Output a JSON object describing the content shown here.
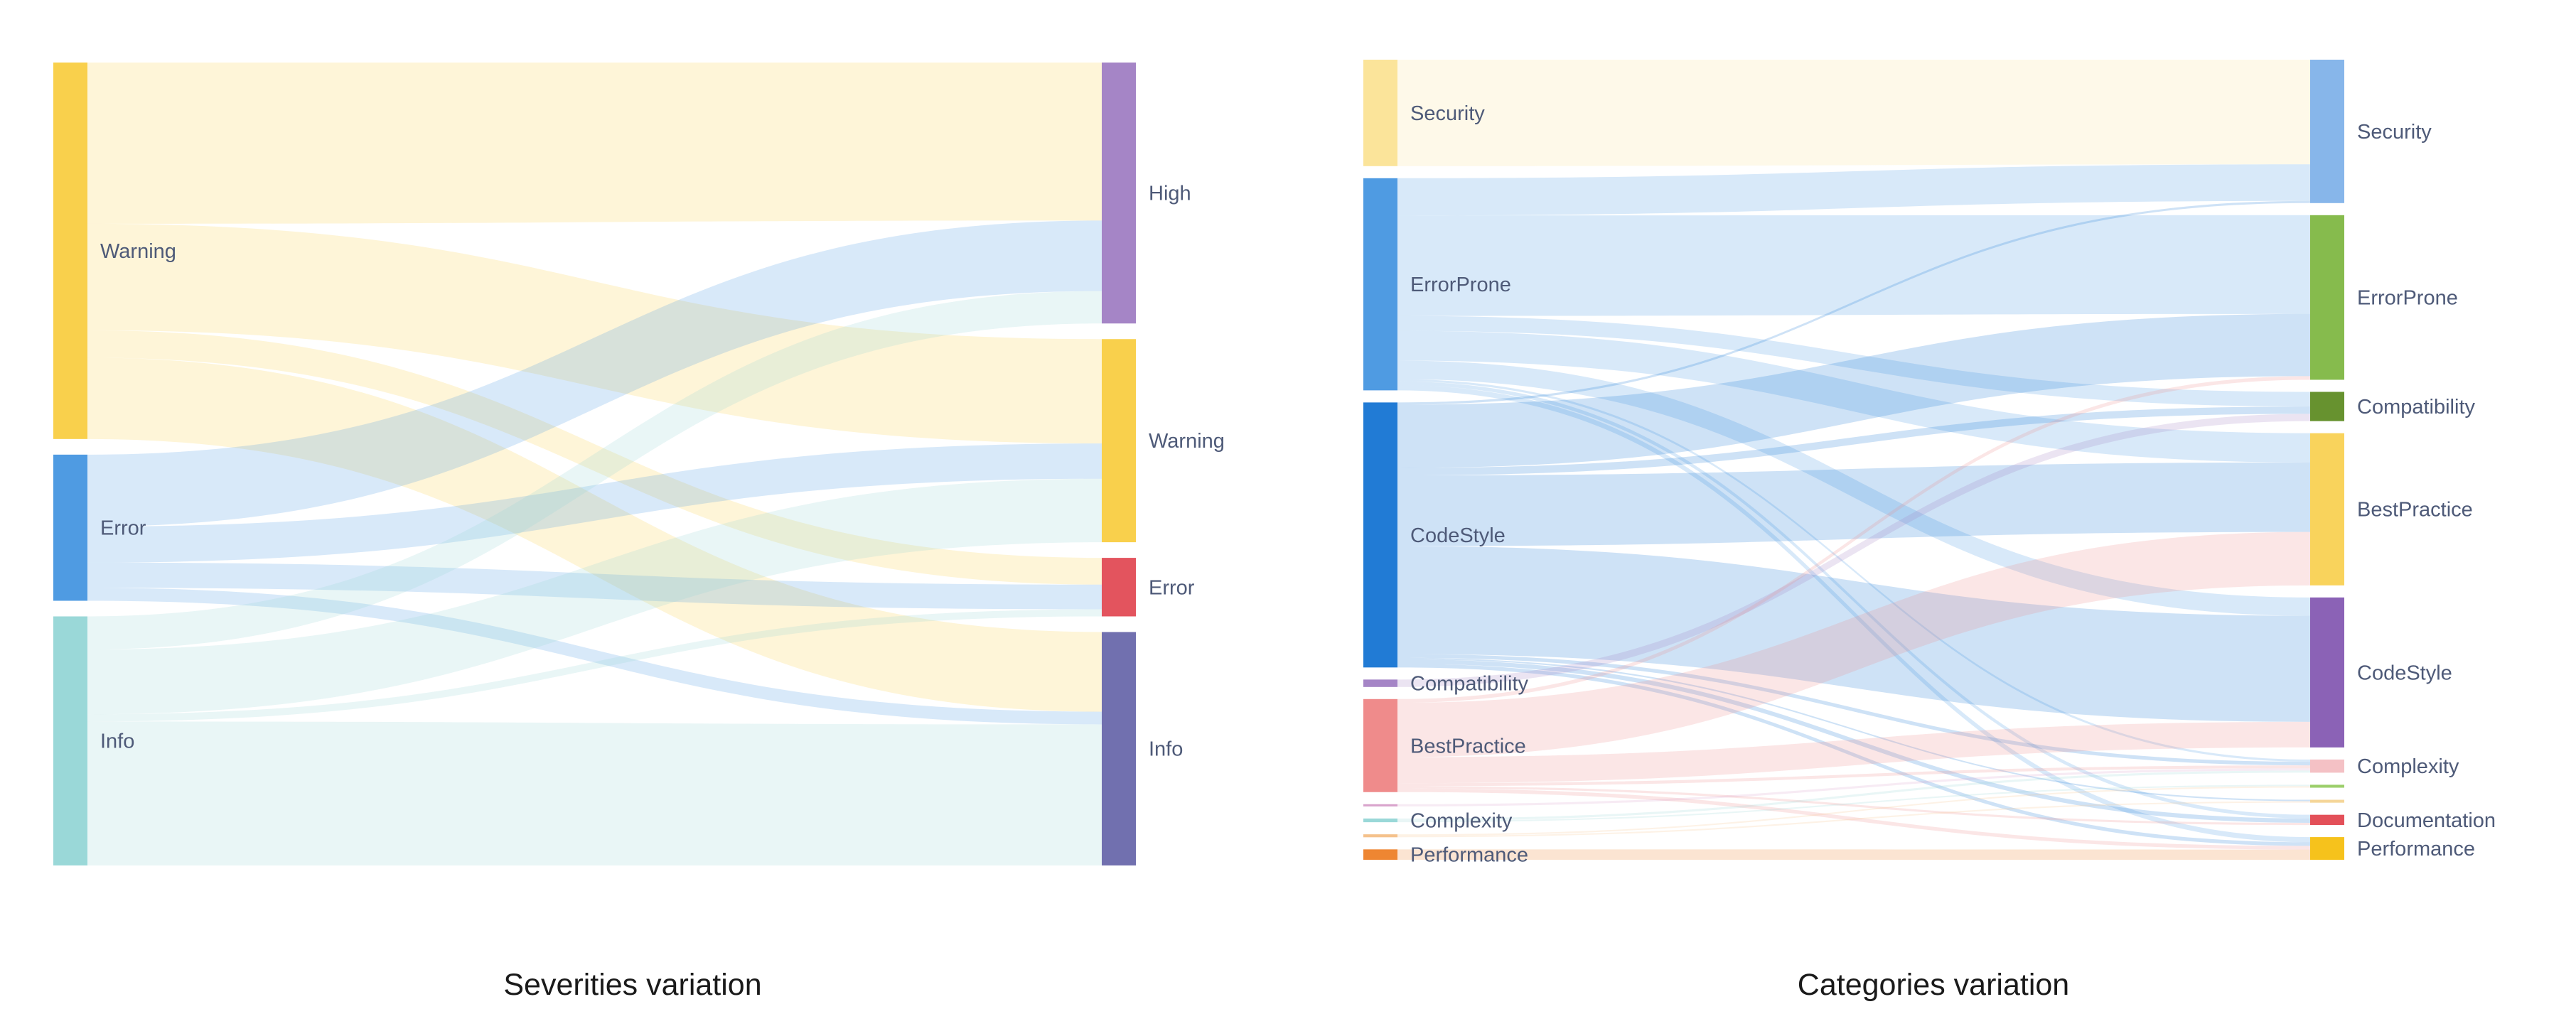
{
  "chart_data": [
    {
      "type": "sankey",
      "caption": "Severities variation",
      "sources": [
        {
          "id": "s_warning",
          "label": "Warning",
          "color": "#f9d04c"
        },
        {
          "id": "s_error",
          "label": "Error",
          "color": "#4f9be2"
        },
        {
          "id": "s_info",
          "label": "Info",
          "color": "#9ad8d8"
        }
      ],
      "targets": [
        {
          "id": "t_high",
          "label": "High",
          "color": "#a585c6"
        },
        {
          "id": "t_warning",
          "label": "Warning",
          "color": "#f9d04c"
        },
        {
          "id": "t_error",
          "label": "Error",
          "color": "#e3545e"
        },
        {
          "id": "t_info",
          "label": "Info",
          "color": "#7170af"
        }
      ],
      "links": [
        {
          "source": "s_warning",
          "target": "t_high",
          "value": 224
        },
        {
          "source": "s_warning",
          "target": "t_warning",
          "value": 148
        },
        {
          "source": "s_warning",
          "target": "t_error",
          "value": 38
        },
        {
          "source": "s_warning",
          "target": "t_info",
          "value": 113
        },
        {
          "source": "s_error",
          "target": "t_high",
          "value": 100
        },
        {
          "source": "s_error",
          "target": "t_warning",
          "value": 50
        },
        {
          "source": "s_error",
          "target": "t_error",
          "value": 35
        },
        {
          "source": "s_error",
          "target": "t_info",
          "value": 18
        },
        {
          "source": "s_info",
          "target": "t_high",
          "value": 46
        },
        {
          "source": "s_info",
          "target": "t_warning",
          "value": 90
        },
        {
          "source": "s_info",
          "target": "t_error",
          "value": 10
        },
        {
          "source": "s_info",
          "target": "t_info",
          "value": 200
        }
      ]
    },
    {
      "type": "sankey",
      "caption": "Categories variation",
      "sources": [
        {
          "id": "s_security",
          "label": "Security",
          "color": "#fbe49a"
        },
        {
          "id": "s_errorprone",
          "label": "ErrorProne",
          "color": "#4f9be2"
        },
        {
          "id": "s_codestyle",
          "label": "CodeStyle",
          "color": "#217bd5"
        },
        {
          "id": "s_compat",
          "label": "Compatibility",
          "color": "#a585c6"
        },
        {
          "id": "s_bestpractice",
          "label": "BestPractice",
          "color": "#ef8b8b"
        },
        {
          "id": "s_unlabeled1",
          "label": "",
          "color": "#d9a4cc"
        },
        {
          "id": "s_complexity",
          "label": "Complexity",
          "color": "#9ad8d8"
        },
        {
          "id": "s_unlabeled2",
          "label": "",
          "color": "#f5c28c"
        },
        {
          "id": "s_performance",
          "label": "Performance",
          "color": "#ee8632"
        }
      ],
      "targets": [
        {
          "id": "t_security",
          "label": "Security",
          "color": "#87b6ea"
        },
        {
          "id": "t_errorprone",
          "label": "ErrorProne",
          "color": "#86bb4d"
        },
        {
          "id": "t_compat",
          "label": "Compatibility",
          "color": "#67922f"
        },
        {
          "id": "t_bestpractice",
          "label": "BestPractice",
          "color": "#f9d35c"
        },
        {
          "id": "t_codestyle",
          "label": "CodeStyle",
          "color": "#8b62b6"
        },
        {
          "id": "t_complexity",
          "label": "Complexity",
          "color": "#f4c1c5"
        },
        {
          "id": "t_unlabeled1",
          "label": "",
          "color": "#9ccf6b"
        },
        {
          "id": "t_unlabeled2",
          "label": "",
          "color": "#f5d699"
        },
        {
          "id": "t_documentation",
          "label": "Documentation",
          "color": "#e35059"
        },
        {
          "id": "t_performance",
          "label": "Performance",
          "color": "#f6c21c"
        }
      ],
      "links": [
        {
          "source": "s_security",
          "target": "t_security",
          "value": 143
        },
        {
          "source": "s_errorprone",
          "target": "t_security",
          "value": 50
        },
        {
          "source": "s_errorprone",
          "target": "t_errorprone",
          "value": 135
        },
        {
          "source": "s_errorprone",
          "target": "t_compat",
          "value": 20
        },
        {
          "source": "s_errorprone",
          "target": "t_bestpractice",
          "value": 40
        },
        {
          "source": "s_errorprone",
          "target": "t_codestyle",
          "value": 25
        },
        {
          "source": "s_errorprone",
          "target": "t_complexity",
          "value": 3
        },
        {
          "source": "s_errorprone",
          "target": "t_documentation",
          "value": 5
        },
        {
          "source": "s_errorprone",
          "target": "t_performance",
          "value": 7
        },
        {
          "source": "s_codestyle",
          "target": "t_security",
          "value": 3
        },
        {
          "source": "s_codestyle",
          "target": "t_errorprone",
          "value": 85
        },
        {
          "source": "s_codestyle",
          "target": "t_compat",
          "value": 10
        },
        {
          "source": "s_codestyle",
          "target": "t_bestpractice",
          "value": 95
        },
        {
          "source": "s_codestyle",
          "target": "t_codestyle",
          "value": 145
        },
        {
          "source": "s_codestyle",
          "target": "t_complexity",
          "value": 5
        },
        {
          "source": "s_codestyle",
          "target": "t_unlabeled2",
          "value": 2
        },
        {
          "source": "s_codestyle",
          "target": "t_documentation",
          "value": 6
        },
        {
          "source": "s_codestyle",
          "target": "t_performance",
          "value": 5
        },
        {
          "source": "s_compat",
          "target": "t_compat",
          "value": 10
        },
        {
          "source": "s_bestpractice",
          "target": "t_errorprone",
          "value": 5
        },
        {
          "source": "s_bestpractice",
          "target": "t_bestpractice",
          "value": 73
        },
        {
          "source": "s_bestpractice",
          "target": "t_codestyle",
          "value": 35
        },
        {
          "source": "s_bestpractice",
          "target": "t_complexity",
          "value": 4
        },
        {
          "source": "s_bestpractice",
          "target": "t_documentation",
          "value": 3
        },
        {
          "source": "s_bestpractice",
          "target": "t_performance",
          "value": 5
        },
        {
          "source": "s_unlabeled1",
          "target": "t_complexity",
          "value": 3
        },
        {
          "source": "s_complexity",
          "target": "t_complexity",
          "value": 3
        },
        {
          "source": "s_complexity",
          "target": "t_unlabeled1",
          "value": 2
        },
        {
          "source": "s_unlabeled2",
          "target": "t_unlabeled1",
          "value": 2
        },
        {
          "source": "s_unlabeled2",
          "target": "t_unlabeled2",
          "value": 2
        },
        {
          "source": "s_performance",
          "target": "t_performance",
          "value": 14
        }
      ]
    }
  ]
}
